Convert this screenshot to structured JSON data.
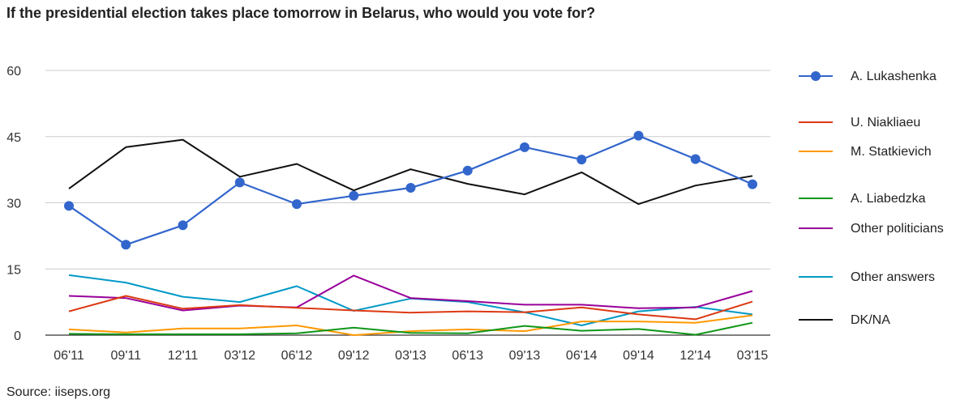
{
  "chart_data": {
    "type": "line",
    "title": "If the presidential election takes place tomorrow in Belarus, who would you vote for?",
    "source": "Source: iiseps.org",
    "categories": [
      "06'11",
      "09'11",
      "12'11",
      "03'12",
      "06'12",
      "09'12",
      "03'13",
      "06'13",
      "09'13",
      "06'14",
      "09'14",
      "12'14",
      "03'15"
    ],
    "ylim": [
      0,
      60
    ],
    "yticks": [
      0,
      15,
      30,
      45,
      60
    ],
    "grid": true,
    "legend": "right",
    "series": [
      {
        "name": "A. Lukashenka",
        "color": "#3366cc",
        "markers": true,
        "values": [
          29.3,
          20.5,
          24.9,
          34.6,
          29.7,
          31.6,
          33.4,
          37.3,
          42.6,
          39.8,
          45.2,
          39.9,
          34.2
        ]
      },
      {
        "name": "U. Niakliaeu",
        "color": "#dc3912",
        "markers": false,
        "values": [
          5.4,
          8.9,
          6.0,
          6.8,
          6.2,
          5.6,
          5.1,
          5.4,
          5.2,
          6.3,
          4.7,
          3.6,
          7.6
        ]
      },
      {
        "name": "M. Statkievich",
        "color": "#ff9900",
        "markers": false,
        "values": [
          1.3,
          0.6,
          1.5,
          1.5,
          2.2,
          0.0,
          0.9,
          1.3,
          0.9,
          3.1,
          3.1,
          2.8,
          4.5
        ]
      },
      {
        "name": "A. Liabedzka",
        "color": "#109618",
        "markers": false,
        "values": [
          0.3,
          0.2,
          0.2,
          0.2,
          0.4,
          1.7,
          0.5,
          0.4,
          2.1,
          1.0,
          1.4,
          0.1,
          2.8
        ]
      },
      {
        "name": "Other politicians",
        "color": "#990099",
        "markers": false,
        "values": [
          8.9,
          8.4,
          5.6,
          6.7,
          6.3,
          13.5,
          8.4,
          7.7,
          6.9,
          6.9,
          6.1,
          6.3,
          10.0
        ]
      },
      {
        "name": "Other answers",
        "color": "#0099c6",
        "markers": false,
        "values": [
          13.6,
          11.9,
          8.7,
          7.5,
          11.1,
          5.5,
          8.3,
          7.5,
          5.2,
          2.2,
          5.4,
          6.4,
          4.7
        ]
      },
      {
        "name": "DK/NA",
        "color": "#111111",
        "markers": false,
        "values": [
          33.2,
          42.6,
          44.3,
          35.9,
          38.8,
          32.8,
          37.6,
          34.3,
          31.9,
          36.9,
          29.7,
          33.9,
          36.1
        ]
      }
    ]
  }
}
